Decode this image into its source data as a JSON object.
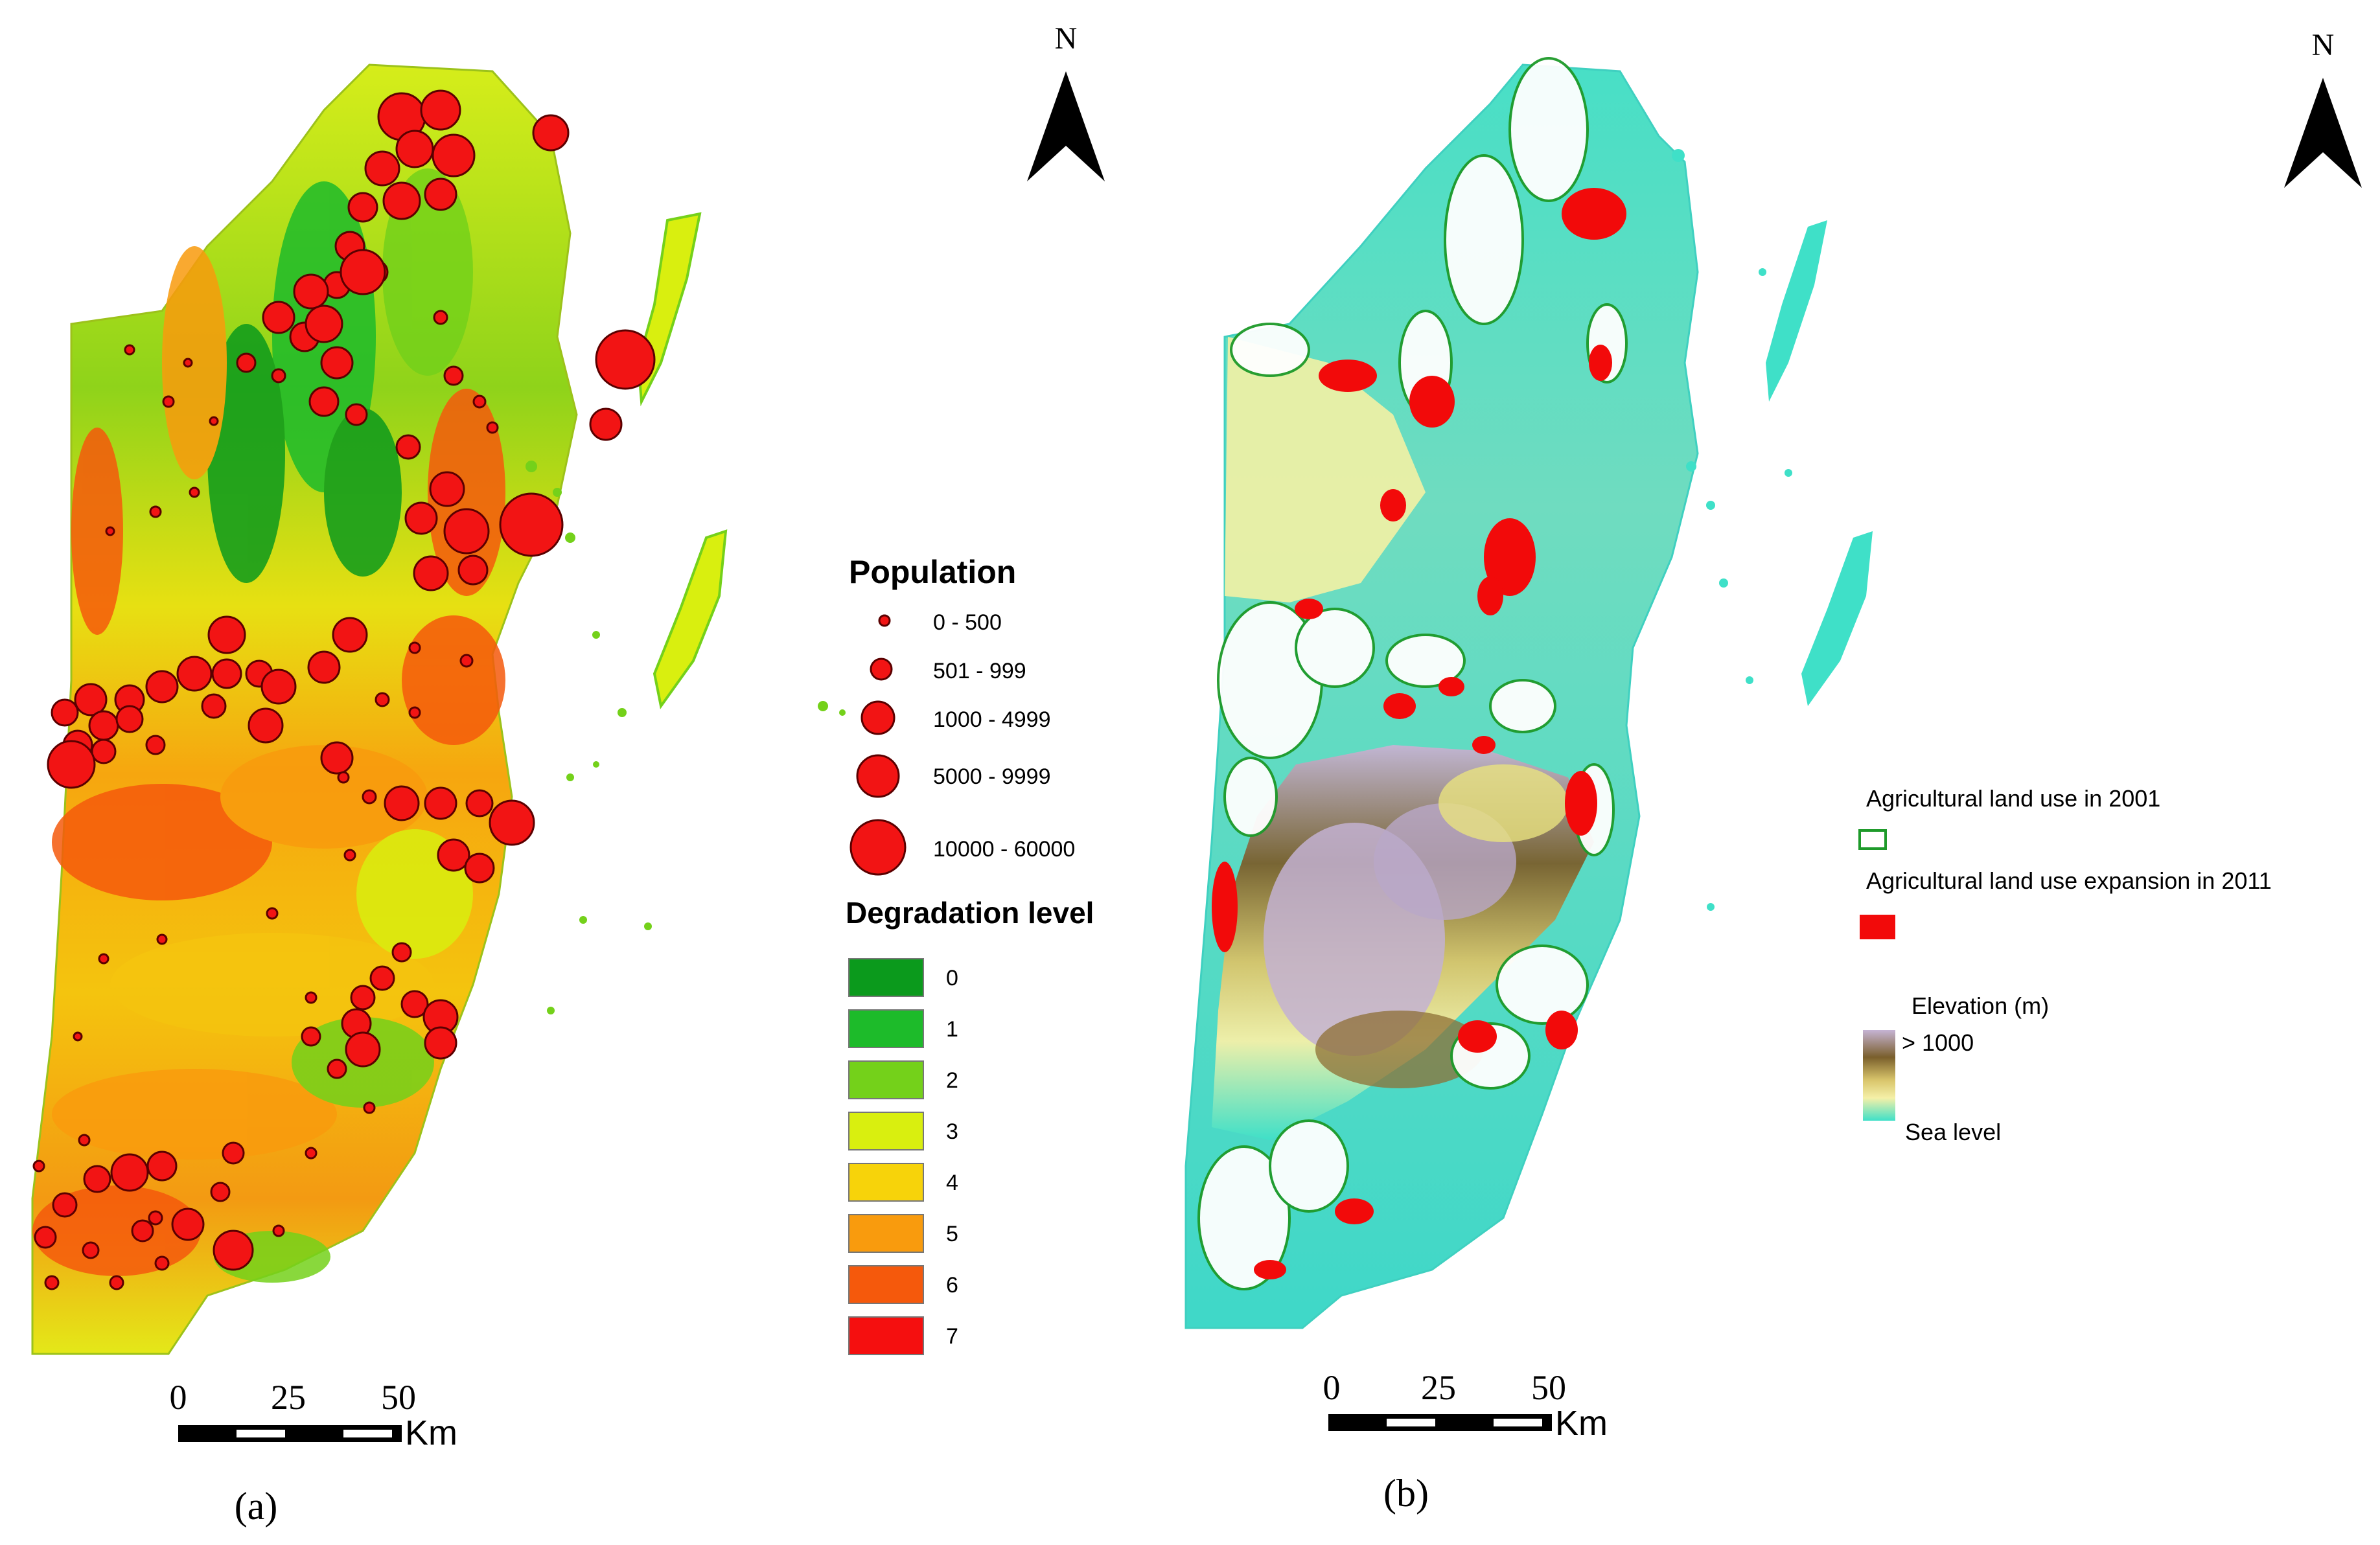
{
  "panel_a": {
    "caption": "(a)",
    "north_label": "N",
    "population_legend": {
      "title": "Population",
      "classes": [
        "0 - 500",
        "501 - 999",
        "1000 - 4999",
        "5000 - 9999",
        "10000 - 60000"
      ]
    },
    "degradation_legend": {
      "title": "Degradation level",
      "levels": [
        {
          "label": "0",
          "color": "#0b9a1c"
        },
        {
          "label": "1",
          "color": "#1dbb2a"
        },
        {
          "label": "2",
          "color": "#74d11a"
        },
        {
          "label": "3",
          "color": "#d9ef0f"
        },
        {
          "label": "4",
          "color": "#f7d30a"
        },
        {
          "label": "5",
          "color": "#f99b0d"
        },
        {
          "label": "6",
          "color": "#f5590c"
        },
        {
          "label": "7",
          "color": "#f50f0f"
        }
      ]
    },
    "scale_bar": {
      "ticks": [
        "0",
        "25",
        "50"
      ],
      "unit": "Km"
    }
  },
  "panel_b": {
    "caption": "(b)",
    "north_label": "N",
    "legend": {
      "agri_2001": "Agricultural land use in 2001",
      "agri_2011": "Agricultural land use expansion in 2011",
      "elevation_title": "Elevation (m)",
      "elevation_high": "> 1000",
      "elevation_low": "Sea level"
    },
    "scale_bar": {
      "ticks": [
        "0",
        "25",
        "50"
      ],
      "unit": "Km"
    }
  },
  "colors": {
    "population_marker": "#f21414",
    "agri_2011": "#f20a0a",
    "agri_2001": "#1e9a2a",
    "sea_level": "#3fe0c8",
    "highland": "#b9a8c8"
  }
}
